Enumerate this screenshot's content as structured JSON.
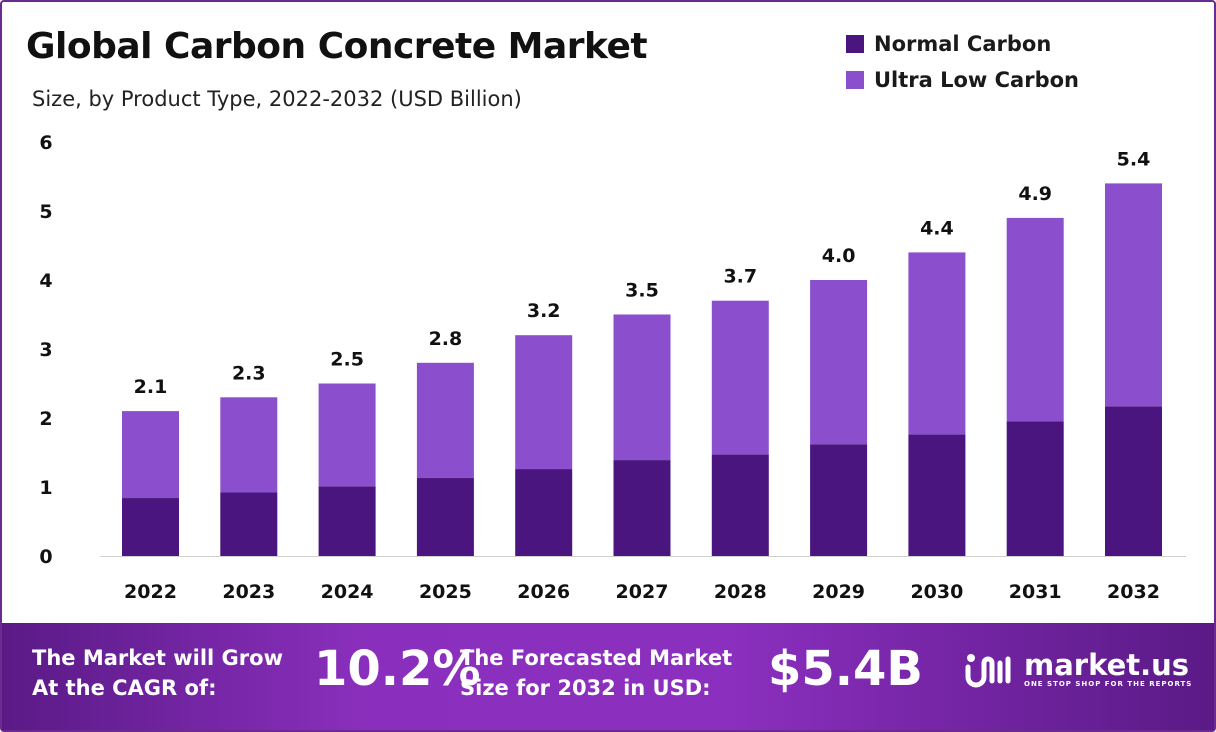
{
  "header": {
    "title": "Global Carbon Concrete Market",
    "subtitle": "Size, by Product Type, 2022-2032 (USD Billion)"
  },
  "legend": [
    {
      "label": "Normal Carbon",
      "color": "#4a157e"
    },
    {
      "label": "Ultra Low Carbon",
      "color": "#8b4fcd"
    }
  ],
  "chart_data": {
    "type": "bar",
    "stacked": true,
    "categories": [
      "2022",
      "2023",
      "2024",
      "2025",
      "2026",
      "2027",
      "2028",
      "2029",
      "2030",
      "2031",
      "2032"
    ],
    "series": [
      {
        "name": "Normal Carbon",
        "color": "#4a157e",
        "values": [
          0.84,
          0.92,
          1.01,
          1.13,
          1.26,
          1.39,
          1.47,
          1.62,
          1.76,
          1.95,
          2.17
        ]
      },
      {
        "name": "Ultra Low Carbon",
        "color": "#8b4fcd",
        "values": [
          1.26,
          1.38,
          1.49,
          1.67,
          1.94,
          2.11,
          2.23,
          2.38,
          2.64,
          2.95,
          3.23
        ]
      }
    ],
    "totals": [
      2.1,
      2.3,
      2.5,
      2.8,
      3.2,
      3.5,
      3.7,
      4.0,
      4.4,
      4.9,
      5.4
    ],
    "total_labels": [
      "2.1",
      "2.3",
      "2.5",
      "2.8",
      "3.2",
      "3.5",
      "3.7",
      "4.0",
      "4.4",
      "4.9",
      "5.4"
    ],
    "yticks": [
      "0",
      "1",
      "2",
      "3",
      "4",
      "5",
      "6"
    ],
    "ylim": [
      0,
      6
    ],
    "grid": false,
    "legend_position": "top-right"
  },
  "footer": {
    "cagr_label": "The Market will Grow At the CAGR of:",
    "cagr_value": "10.2%",
    "size_label": "The Forecasted Market Size for 2032 in USD:",
    "size_value": "$5.4B",
    "brand_name": "market.us",
    "brand_tagline": "ONE STOP SHOP FOR THE REPORTS"
  }
}
